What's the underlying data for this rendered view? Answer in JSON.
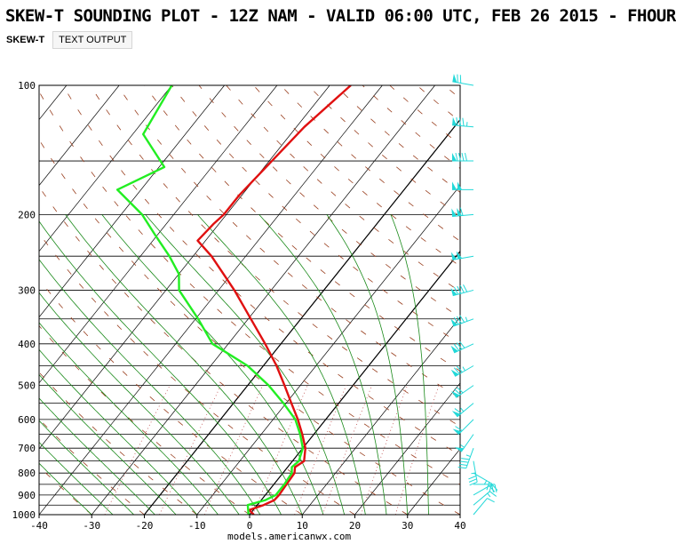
{
  "header": {
    "title": "SKEW-T SOUNDING PLOT - 12Z NAM - VALID 06:00 UTC, FEB 26 2015 - FHOUR"
  },
  "tabs": [
    {
      "label": "SKEW-T",
      "active": true
    },
    {
      "label": "TEXT OUTPUT",
      "active": false
    }
  ],
  "footer": {
    "site": "models.americanwx.com"
  },
  "colors": {
    "temperature": "#e01010",
    "dewpoint": "#22ee22",
    "isotherms": "#000000",
    "dry_adiabats": "#9a4020",
    "moist_adiabats": "#1a8a1a",
    "mixing_ratio": "#c05050",
    "wind_barbs": "#22d8d8"
  },
  "chart_data": {
    "type": "skew-t log-p",
    "x_axis": {
      "label": "",
      "range": [
        -40,
        40
      ],
      "ticks": [
        -40,
        -30,
        -20,
        -10,
        0,
        10,
        20,
        30,
        40
      ],
      "unit": "°C"
    },
    "y_axis": {
      "label": "",
      "scale": "log",
      "range": [
        1000,
        100
      ],
      "ticks": [
        1000,
        900,
        800,
        700,
        600,
        500,
        400,
        300,
        200,
        100
      ],
      "unit": "hPa"
    },
    "series": [
      {
        "key": "temperature",
        "points": [
          {
            "p": 1000,
            "t": 0.8
          },
          {
            "p": 975,
            "t": -0.8
          },
          {
            "p": 950,
            "t": 1.2
          },
          {
            "p": 925,
            "t": 2.5
          },
          {
            "p": 900,
            "t": 2.6
          },
          {
            "p": 850,
            "t": 2.4
          },
          {
            "p": 800,
            "t": 2.2
          },
          {
            "p": 775,
            "t": 1.4
          },
          {
            "p": 750,
            "t": 2.2
          },
          {
            "p": 700,
            "t": 0.5
          },
          {
            "p": 650,
            "t": -2.2
          },
          {
            "p": 600,
            "t": -5.3
          },
          {
            "p": 550,
            "t": -9.0
          },
          {
            "p": 500,
            "t": -13.0
          },
          {
            "p": 450,
            "t": -17.5
          },
          {
            "p": 400,
            "t": -23.0
          },
          {
            "p": 350,
            "t": -29.5
          },
          {
            "p": 300,
            "t": -37.0
          },
          {
            "p": 250,
            "t": -46.5
          },
          {
            "p": 230,
            "t": -51.5
          },
          {
            "p": 210,
            "t": -51.0
          },
          {
            "p": 200,
            "t": -50.5
          },
          {
            "p": 180,
            "t": -50.5
          },
          {
            "p": 150,
            "t": -49.5
          },
          {
            "p": 125,
            "t": -48.5
          },
          {
            "p": 100,
            "t": -46.0
          }
        ]
      },
      {
        "key": "dewpoint",
        "points": [
          {
            "p": 1000,
            "t": -0.2
          },
          {
            "p": 950,
            "t": -1.8
          },
          {
            "p": 925,
            "t": 0.8
          },
          {
            "p": 900,
            "t": 2.0
          },
          {
            "p": 850,
            "t": 2.0
          },
          {
            "p": 800,
            "t": 1.7
          },
          {
            "p": 775,
            "t": 0.8
          },
          {
            "p": 750,
            "t": 1.2
          },
          {
            "p": 700,
            "t": 0.0
          },
          {
            "p": 650,
            "t": -2.6
          },
          {
            "p": 600,
            "t": -5.8
          },
          {
            "p": 550,
            "t": -10.5
          },
          {
            "p": 500,
            "t": -16.0
          },
          {
            "p": 450,
            "t": -23.0
          },
          {
            "p": 400,
            "t": -33.0
          },
          {
            "p": 350,
            "t": -39.5
          },
          {
            "p": 300,
            "t": -47.5
          },
          {
            "p": 275,
            "t": -50.0
          },
          {
            "p": 250,
            "t": -54.5
          },
          {
            "p": 225,
            "t": -60.0
          },
          {
            "p": 200,
            "t": -66.0
          },
          {
            "p": 175,
            "t": -74.5
          },
          {
            "p": 155,
            "t": -69.0
          },
          {
            "p": 130,
            "t": -78.0
          },
          {
            "p": 100,
            "t": -80.0
          }
        ]
      }
    ],
    "wind_barbs": [
      {
        "p": 1000,
        "dir": 40,
        "kt": 10
      },
      {
        "p": 950,
        "dir": 50,
        "kt": 15
      },
      {
        "p": 900,
        "dir": 60,
        "kt": 20
      },
      {
        "p": 850,
        "dir": 90,
        "kt": 20
      },
      {
        "p": 800,
        "dir": 120,
        "kt": 25
      },
      {
        "p": 750,
        "dir": 170,
        "kt": 35
      },
      {
        "p": 700,
        "dir": 200,
        "kt": 45
      },
      {
        "p": 650,
        "dir": 215,
        "kt": 55
      },
      {
        "p": 600,
        "dir": 225,
        "kt": 60
      },
      {
        "p": 550,
        "dir": 230,
        "kt": 65
      },
      {
        "p": 500,
        "dir": 235,
        "kt": 70
      },
      {
        "p": 450,
        "dir": 240,
        "kt": 75
      },
      {
        "p": 400,
        "dir": 245,
        "kt": 80
      },
      {
        "p": 350,
        "dir": 250,
        "kt": 85
      },
      {
        "p": 300,
        "dir": 255,
        "kt": 90
      },
      {
        "p": 250,
        "dir": 260,
        "kt": 100
      },
      {
        "p": 200,
        "dir": 265,
        "kt": 110
      },
      {
        "p": 175,
        "dir": 270,
        "kt": 100
      },
      {
        "p": 150,
        "dir": 270,
        "kt": 90
      },
      {
        "p": 125,
        "dir": 275,
        "kt": 85
      },
      {
        "p": 100,
        "dir": 280,
        "kt": 70
      }
    ],
    "grid": true
  }
}
